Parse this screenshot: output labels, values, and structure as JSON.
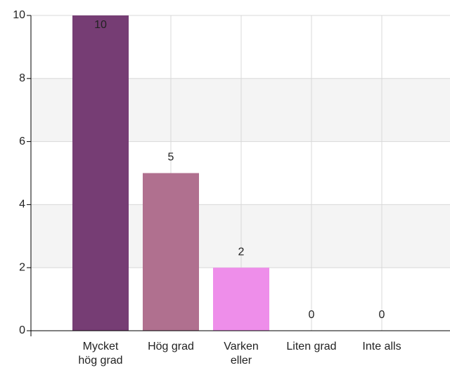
{
  "chart_data": {
    "type": "bar",
    "categories": [
      "Mycket hög grad",
      "Hög grad",
      "Varken eller",
      "Liten grad",
      "Inte alls"
    ],
    "values": [
      10,
      5,
      2,
      0,
      0
    ],
    "colors": [
      "#763d74",
      "#b0708f",
      "#ee8eea",
      "#ee8eea",
      "#ee8eea"
    ],
    "ylim": [
      0,
      10
    ],
    "yticks": [
      0,
      2,
      4,
      6,
      8,
      10
    ],
    "grid": true
  }
}
